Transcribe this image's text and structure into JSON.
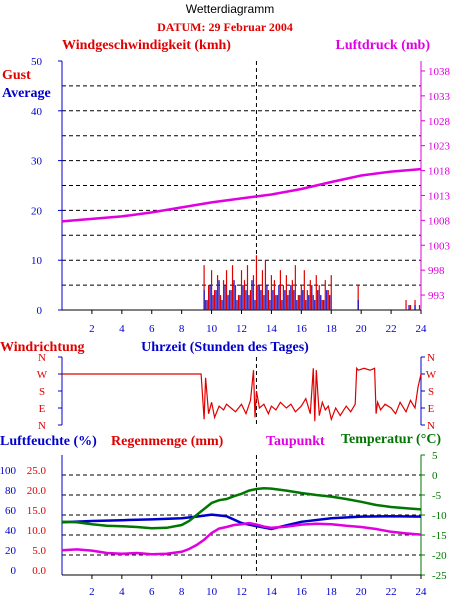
{
  "header": {
    "title": "Wetterdiagramm",
    "date": "DATUM: 29 Februar 2004"
  },
  "colors": {
    "red": "#e00000",
    "blue": "#0000cc",
    "magenta": "#e000e0",
    "green": "#007700",
    "axis": "#000000",
    "grid": "#000000"
  },
  "chart_data": [
    {
      "type": "line",
      "id": "wind-pressure",
      "title": "",
      "left_axis_label": "Windgeschwindigkeit (kmh)",
      "right_axis_label": "Luftdruck (mb)",
      "legend": [
        "Gust",
        "Average"
      ],
      "xlabel": "",
      "xlim": [
        0,
        24
      ],
      "ylim_left": [
        0,
        50
      ],
      "ylim_right": [
        990,
        1040
      ],
      "left_ticks": [
        0,
        10,
        20,
        30,
        40,
        50
      ],
      "right_ticks": [
        993,
        998,
        1003,
        1008,
        1013,
        1018,
        1023,
        1028,
        1033,
        1038
      ],
      "x_ticks": [
        2,
        4,
        6,
        8,
        10,
        12,
        14,
        16,
        18,
        20,
        22,
        24
      ],
      "grid": "horizontal dashed",
      "series": [
        {
          "name": "Luftdruck (mb)",
          "axis": "right",
          "x": [
            0,
            2,
            4,
            6,
            8,
            10,
            12,
            14,
            16,
            18,
            20,
            22,
            24
          ],
          "y": [
            1007.8,
            1008.3,
            1008.8,
            1009.6,
            1010.6,
            1011.6,
            1012.4,
            1013.2,
            1014.3,
            1015.7,
            1017,
            1017.8,
            1018.3
          ]
        },
        {
          "name": "Gust",
          "axis": "left",
          "x": [
            9.5,
            9.6,
            9.8,
            10.0,
            10.2,
            10.4,
            10.6,
            10.8,
            11.0,
            11.2,
            11.4,
            11.6,
            11.8,
            12.0,
            12.2,
            12.4,
            12.6,
            12.8,
            13.0,
            13.2,
            13.4,
            13.6,
            13.8,
            14.0,
            14.2,
            14.4,
            14.6,
            14.8,
            15.0,
            15.2,
            15.4,
            15.6,
            15.8,
            16.0,
            16.2,
            16.4,
            16.6,
            16.8,
            17.0,
            17.2,
            17.4,
            17.6,
            17.8,
            18.0,
            19.8,
            23.0,
            23.3,
            23.6,
            23.9
          ],
          "y": [
            9,
            2,
            5,
            8,
            4,
            7,
            3,
            6,
            8,
            4,
            9,
            5,
            3,
            8,
            6,
            9,
            4,
            7,
            11,
            5,
            8,
            10,
            4,
            7,
            6,
            3,
            8,
            5,
            7,
            4,
            6,
            9,
            3,
            5,
            8,
            4,
            6,
            3,
            7,
            5,
            2,
            6,
            4,
            7,
            5,
            2,
            1,
            2,
            1
          ]
        },
        {
          "name": "Average",
          "axis": "left",
          "x": [
            9.5,
            9.7,
            9.9,
            10.1,
            10.3,
            10.5,
            10.7,
            10.9,
            11.1,
            11.3,
            11.5,
            11.7,
            11.9,
            12.1,
            12.3,
            12.5,
            12.7,
            12.9,
            13.1,
            13.3,
            13.5,
            13.7,
            13.9,
            14.1,
            14.3,
            14.5,
            14.7,
            14.9,
            15.1,
            15.3,
            15.5,
            15.7,
            15.9,
            16.1,
            16.3,
            16.5,
            16.7,
            16.9,
            17.1,
            17.3,
            17.5,
            17.7,
            17.9,
            19.8,
            23.2,
            23.6
          ],
          "y": [
            4,
            2,
            5,
            3,
            4,
            6,
            2,
            5,
            3,
            4,
            6,
            2,
            3,
            5,
            4,
            3,
            6,
            2,
            5,
            4,
            3,
            5,
            2,
            4,
            3,
            5,
            2,
            4,
            3,
            5,
            4,
            2,
            3,
            4,
            2,
            3,
            5,
            2,
            4,
            3,
            2,
            4,
            3,
            2,
            1,
            1
          ]
        }
      ]
    },
    {
      "type": "line",
      "id": "wind-direction",
      "left_axis_label": "Windrichtung",
      "xlabel": "Uhrzeit (Stunden des Tages)",
      "xlim": [
        0,
        24
      ],
      "direction_ticks": [
        "N",
        "W",
        "S",
        "E",
        "N"
      ],
      "series": [
        {
          "name": "Windrichtung",
          "x": [
            0,
            9.3,
            9.5,
            9.6,
            9.8,
            10.0,
            10.2,
            10.5,
            10.8,
            11.0,
            11.3,
            11.6,
            12.0,
            12.3,
            12.6,
            12.8,
            12.9,
            13.0,
            13.2,
            13.5,
            13.8,
            14.0,
            14.3,
            14.6,
            15.0,
            15.3,
            15.6,
            16.0,
            16.3,
            16.6,
            16.8,
            16.9,
            17.0,
            17.2,
            17.4,
            17.6,
            17.8,
            18.0,
            18.3,
            18.6,
            19.0,
            19.3,
            19.6,
            19.7,
            19.8,
            20.2,
            20.6,
            20.9,
            21.0,
            21.1,
            21.3,
            21.6,
            22.0,
            22.3,
            22.6,
            23.0,
            23.3,
            23.6,
            23.8,
            24.0
          ],
          "y": [
            270,
            270,
            30,
            250,
            60,
            120,
            40,
            100,
            80,
            110,
            90,
            70,
            110,
            60,
            130,
            290,
            40,
            180,
            90,
            110,
            60,
            100,
            80,
            120,
            90,
            110,
            70,
            100,
            140,
            60,
            300,
            20,
            290,
            50,
            120,
            80,
            100,
            30,
            90,
            50,
            100,
            70,
            110,
            300,
            290,
            300,
            290,
            300,
            60,
            120,
            80,
            110,
            90,
            60,
            120,
            70,
            130,
            90,
            200,
            270
          ]
        }
      ]
    },
    {
      "type": "line",
      "id": "humidity-temp",
      "labels": {
        "humidity": "Luftfeuchte (%)",
        "rain": "Regenmenge (mm)",
        "dewpoint": "Taupunkt",
        "temperature": "Temperatur (°C)"
      },
      "xlim": [
        0,
        24
      ],
      "humidity_ticks": [
        0,
        20,
        40,
        60,
        80,
        100
      ],
      "rain_ticks": [
        "0.0",
        "5.0",
        "10.0",
        "15.0",
        "20.0",
        "25.0"
      ],
      "temp_ticks": [
        -25,
        -20,
        -15,
        -10,
        -5,
        0,
        5
      ],
      "x_ticks": [
        2,
        4,
        6,
        8,
        10,
        12,
        14,
        16,
        18,
        20,
        22,
        24
      ],
      "ylim_temp": [
        -25,
        5
      ],
      "grid": "horizontal dashed",
      "series": [
        {
          "name": "Luftfeuchte (%)",
          "color_key": "blue",
          "axis": "temp",
          "x": [
            0,
            2,
            4,
            6,
            8,
            9,
            10,
            11,
            12,
            13,
            14,
            15,
            16,
            18,
            20,
            22,
            24
          ],
          "y": [
            -11.8,
            -11.5,
            -11.3,
            -11.1,
            -10.8,
            -10.4,
            -9.9,
            -10.3,
            -12.0,
            -12.8,
            -13.5,
            -12.6,
            -11.7,
            -10.8,
            -10.4,
            -10.3,
            -10.4
          ]
        },
        {
          "name": "Temperatur (°C)",
          "color_key": "green",
          "axis": "temp",
          "x": [
            0,
            1,
            2,
            3,
            4,
            5,
            6,
            7,
            8,
            8.5,
            9,
            9.5,
            10,
            10.5,
            11,
            11.5,
            12,
            12.5,
            13,
            13.5,
            14,
            15,
            16,
            17,
            18,
            19,
            20,
            21,
            22,
            23,
            24
          ],
          "y": [
            -11.7,
            -11.8,
            -12.3,
            -12.7,
            -12.8,
            -13.0,
            -13.3,
            -13.2,
            -12.5,
            -11.5,
            -10.0,
            -8.5,
            -7.0,
            -6.3,
            -6.0,
            -5.3,
            -4.7,
            -3.9,
            -3.5,
            -3.3,
            -3.4,
            -3.9,
            -4.5,
            -5.0,
            -5.4,
            -6.0,
            -6.7,
            -7.5,
            -8.0,
            -8.3,
            -8.6
          ]
        },
        {
          "name": "Taupunkt",
          "color_key": "magenta",
          "axis": "temp",
          "x": [
            0,
            1,
            2,
            3,
            4,
            5,
            6,
            7,
            8,
            8.5,
            9,
            9.5,
            10,
            10.5,
            11,
            11.5,
            12,
            12.5,
            13,
            13.5,
            14,
            15,
            16,
            17,
            18,
            19,
            20,
            21,
            22,
            23,
            24
          ],
          "y": [
            -18.8,
            -18.6,
            -18.9,
            -19.5,
            -19.7,
            -19.5,
            -19.8,
            -19.7,
            -19.2,
            -18.5,
            -17.5,
            -16.2,
            -14.5,
            -13.4,
            -13.0,
            -12.5,
            -12.3,
            -12.0,
            -12.4,
            -12.9,
            -13.2,
            -12.9,
            -12.4,
            -12.2,
            -12.3,
            -12.7,
            -13.0,
            -13.5,
            -14.2,
            -14.6,
            -14.9
          ]
        }
      ]
    }
  ]
}
